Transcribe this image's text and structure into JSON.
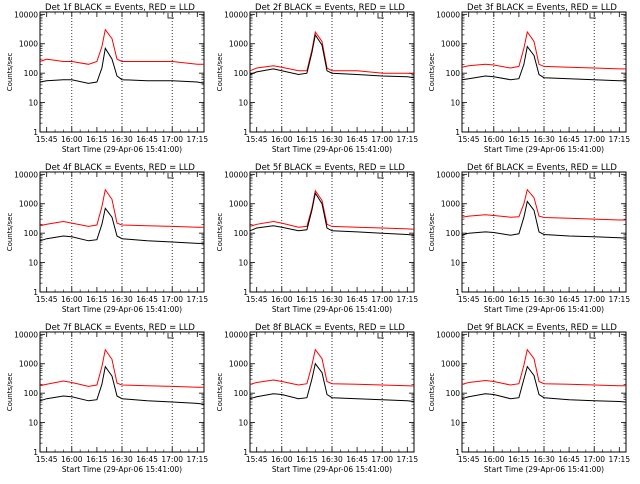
{
  "chart_data": [
    {
      "type": "line",
      "title": "Det 1f BLACK = Events, RED = LLD",
      "xlabel": "Start Time (29-Apr-06 15:41:00)",
      "ylabel": "Counts/sec",
      "x_ticks": [
        "15:45",
        "16:00",
        "16:15",
        "16:30",
        "16:45",
        "17:00",
        "17:15"
      ],
      "y_ticks": [
        "1",
        "10",
        "100",
        "1000",
        "10000"
      ],
      "y_scale": "log",
      "ylim": [
        1,
        12000
      ],
      "series": [
        {
          "name": "LLD",
          "color": "#ff0000",
          "x": [
            "15:41",
            "15:45",
            "15:55",
            "16:00",
            "16:10",
            "16:15",
            "16:18",
            "16:20",
            "16:24",
            "16:27",
            "16:30",
            "16:45",
            "17:00",
            "17:15",
            "17:19"
          ],
          "values": [
            250,
            300,
            250,
            250,
            200,
            250,
            800,
            3000,
            1500,
            300,
            250,
            250,
            250,
            200,
            200
          ]
        },
        {
          "name": "Events",
          "color": "#000000",
          "x": [
            "15:41",
            "15:45",
            "15:55",
            "16:00",
            "16:10",
            "16:15",
            "16:18",
            "16:20",
            "16:24",
            "16:27",
            "16:30",
            "16:45",
            "17:00",
            "17:15",
            "17:19"
          ],
          "values": [
            50,
            55,
            60,
            60,
            45,
            50,
            150,
            700,
            300,
            80,
            60,
            55,
            55,
            50,
            45
          ]
        }
      ],
      "annotations": {
        "dotted_lines": [
          "16:00",
          "16:30",
          "17:00"
        ]
      }
    },
    {
      "type": "line",
      "title": "Det 2f BLACK = Events, RED = LLD",
      "xlabel": "Start Time (29-Apr-06 15:41:00)",
      "ylabel": "Counts/sec",
      "x_ticks": [
        "15:45",
        "16:00",
        "16:15",
        "16:30",
        "16:45",
        "17:00",
        "17:15"
      ],
      "y_ticks": [
        "1",
        "10",
        "100",
        "1000",
        "10000"
      ],
      "y_scale": "log",
      "ylim": [
        1,
        12000
      ],
      "series": [
        {
          "name": "LLD",
          "color": "#ff0000",
          "x": [
            "15:41",
            "15:45",
            "15:55",
            "16:00",
            "16:10",
            "16:15",
            "16:18",
            "16:20",
            "16:24",
            "16:27",
            "16:30",
            "16:45",
            "17:00",
            "17:15",
            "17:19"
          ],
          "values": [
            120,
            150,
            180,
            160,
            120,
            120,
            600,
            2500,
            1200,
            150,
            120,
            120,
            100,
            100,
            95
          ]
        },
        {
          "name": "Events",
          "color": "#000000",
          "x": [
            "15:41",
            "15:45",
            "15:55",
            "16:00",
            "16:10",
            "16:15",
            "16:18",
            "16:20",
            "16:24",
            "16:27",
            "16:30",
            "16:45",
            "17:00",
            "17:15",
            "17:19"
          ],
          "values": [
            90,
            110,
            140,
            120,
            90,
            100,
            500,
            2000,
            900,
            120,
            100,
            90,
            80,
            75,
            70
          ]
        }
      ],
      "annotations": {
        "dotted_lines": [
          "16:00",
          "16:30",
          "17:00"
        ]
      }
    },
    {
      "type": "line",
      "title": "Det 3f BLACK = Events, RED = LLD",
      "xlabel": "Start Time (29-Apr-06 15:41:00)",
      "ylabel": "Counts/sec",
      "x_ticks": [
        "15:45",
        "16:00",
        "16:15",
        "16:30",
        "16:45",
        "17:00",
        "17:15"
      ],
      "y_ticks": [
        "1",
        "10",
        "100",
        "1000",
        "10000"
      ],
      "y_scale": "log",
      "ylim": [
        1,
        12000
      ],
      "series": [
        {
          "name": "LLD",
          "color": "#ff0000",
          "x": [
            "15:41",
            "15:45",
            "15:55",
            "16:00",
            "16:10",
            "16:15",
            "16:18",
            "16:20",
            "16:24",
            "16:27",
            "16:30",
            "16:45",
            "17:00",
            "17:15",
            "17:19"
          ],
          "values": [
            160,
            180,
            200,
            190,
            150,
            170,
            700,
            2500,
            1200,
            200,
            170,
            160,
            150,
            140,
            140
          ]
        },
        {
          "name": "Events",
          "color": "#000000",
          "x": [
            "15:41",
            "15:45",
            "15:55",
            "16:00",
            "16:10",
            "16:15",
            "16:18",
            "16:20",
            "16:24",
            "16:27",
            "16:30",
            "16:45",
            "17:00",
            "17:15",
            "17:19"
          ],
          "values": [
            60,
            65,
            80,
            75,
            60,
            65,
            200,
            800,
            400,
            90,
            70,
            65,
            60,
            55,
            55
          ]
        }
      ],
      "annotations": {
        "dotted_lines": [
          "16:00",
          "16:30",
          "17:00"
        ]
      }
    },
    {
      "type": "line",
      "title": "Det 4f BLACK = Events, RED = LLD",
      "xlabel": "Start Time (29-Apr-06 15:41:00)",
      "ylabel": "Counts/sec",
      "x_ticks": [
        "15:45",
        "16:00",
        "16:15",
        "16:30",
        "16:45",
        "17:00",
        "17:15"
      ],
      "y_ticks": [
        "1",
        "10",
        "100",
        "1000",
        "10000"
      ],
      "y_scale": "log",
      "ylim": [
        1,
        12000
      ],
      "series": [
        {
          "name": "LLD",
          "color": "#ff0000",
          "x": [
            "15:41",
            "15:45",
            "15:55",
            "16:00",
            "16:10",
            "16:15",
            "16:18",
            "16:20",
            "16:24",
            "16:27",
            "16:30",
            "16:45",
            "17:00",
            "17:15",
            "17:19"
          ],
          "values": [
            180,
            200,
            250,
            220,
            170,
            190,
            800,
            3000,
            1400,
            220,
            190,
            180,
            170,
            160,
            160
          ]
        },
        {
          "name": "Events",
          "color": "#000000",
          "x": [
            "15:41",
            "15:45",
            "15:55",
            "16:00",
            "16:10",
            "16:15",
            "16:18",
            "16:20",
            "16:24",
            "16:27",
            "16:30",
            "16:45",
            "17:00",
            "17:15",
            "17:19"
          ],
          "values": [
            55,
            65,
            80,
            75,
            55,
            60,
            200,
            700,
            350,
            80,
            65,
            55,
            50,
            45,
            45
          ]
        }
      ],
      "annotations": {
        "dotted_lines": [
          "16:00",
          "16:30",
          "17:00"
        ]
      }
    },
    {
      "type": "line",
      "title": "Det 5f BLACK = Events, RED = LLD",
      "xlabel": "Start Time (29-Apr-06 15:41:00)",
      "ylabel": "Counts/sec",
      "x_ticks": [
        "15:45",
        "16:00",
        "16:15",
        "16:30",
        "16:45",
        "17:00",
        "17:15"
      ],
      "y_ticks": [
        "1",
        "10",
        "100",
        "1000",
        "10000"
      ],
      "y_scale": "log",
      "ylim": [
        1,
        12000
      ],
      "series": [
        {
          "name": "LLD",
          "color": "#ff0000",
          "x": [
            "15:41",
            "15:45",
            "15:55",
            "16:00",
            "16:10",
            "16:15",
            "16:18",
            "16:20",
            "16:24",
            "16:27",
            "16:30",
            "16:45",
            "17:00",
            "17:15",
            "17:19"
          ],
          "values": [
            170,
            200,
            250,
            220,
            160,
            170,
            700,
            2800,
            1300,
            200,
            170,
            160,
            150,
            140,
            135
          ]
        },
        {
          "name": "Events",
          "color": "#000000",
          "x": [
            "15:41",
            "15:45",
            "15:55",
            "16:00",
            "16:10",
            "16:15",
            "16:18",
            "16:20",
            "16:24",
            "16:27",
            "16:30",
            "16:45",
            "17:00",
            "17:15",
            "17:19"
          ],
          "values": [
            120,
            150,
            180,
            160,
            120,
            130,
            600,
            2300,
            1000,
            150,
            120,
            110,
            100,
            90,
            85
          ]
        }
      ],
      "annotations": {
        "dotted_lines": [
          "16:00",
          "16:30",
          "17:00"
        ]
      }
    },
    {
      "type": "line",
      "title": "Det 6f BLACK = Events, RED = LLD",
      "xlabel": "Start Time (29-Apr-06 15:41:00)",
      "ylabel": "Counts/sec",
      "x_ticks": [
        "15:45",
        "16:00",
        "16:15",
        "16:30",
        "16:45",
        "17:00",
        "17:15"
      ],
      "y_ticks": [
        "1",
        "10",
        "100",
        "1000",
        "10000"
      ],
      "y_scale": "log",
      "ylim": [
        1,
        12000
      ],
      "series": [
        {
          "name": "LLD",
          "color": "#ff0000",
          "x": [
            "15:41",
            "15:45",
            "15:55",
            "16:00",
            "16:10",
            "16:15",
            "16:18",
            "16:20",
            "16:24",
            "16:27",
            "16:30",
            "16:45",
            "17:00",
            "17:15",
            "17:19"
          ],
          "values": [
            350,
            380,
            420,
            400,
            350,
            360,
            1000,
            3000,
            1600,
            380,
            340,
            320,
            300,
            280,
            280
          ]
        },
        {
          "name": "Events",
          "color": "#000000",
          "x": [
            "15:41",
            "15:45",
            "15:55",
            "16:00",
            "16:10",
            "16:15",
            "16:18",
            "16:20",
            "16:24",
            "16:27",
            "16:30",
            "16:45",
            "17:00",
            "17:15",
            "17:19"
          ],
          "values": [
            85,
            100,
            110,
            105,
            85,
            95,
            350,
            1200,
            600,
            110,
            90,
            80,
            75,
            70,
            68
          ]
        }
      ],
      "annotations": {
        "dotted_lines": [
          "16:00",
          "16:30",
          "17:00"
        ]
      }
    },
    {
      "type": "line",
      "title": "Det 7f BLACK = Events, RED = LLD",
      "xlabel": "Start Time (29-Apr-06 15:41:00)",
      "ylabel": "Counts/sec",
      "x_ticks": [
        "15:45",
        "16:00",
        "16:15",
        "16:30",
        "16:45",
        "17:00",
        "17:15"
      ],
      "y_ticks": [
        "1",
        "10",
        "100",
        "1000",
        "10000"
      ],
      "y_scale": "log",
      "ylim": [
        1,
        12000
      ],
      "series": [
        {
          "name": "LLD",
          "color": "#ff0000",
          "x": [
            "15:41",
            "15:45",
            "15:55",
            "16:00",
            "16:10",
            "16:15",
            "16:18",
            "16:20",
            "16:24",
            "16:27",
            "16:30",
            "16:45",
            "17:00",
            "17:15",
            "17:19"
          ],
          "values": [
            180,
            200,
            260,
            230,
            170,
            190,
            800,
            3000,
            1400,
            220,
            190,
            180,
            170,
            160,
            160
          ]
        },
        {
          "name": "Events",
          "color": "#000000",
          "x": [
            "15:41",
            "15:45",
            "15:55",
            "16:00",
            "16:10",
            "16:15",
            "16:18",
            "16:20",
            "16:24",
            "16:27",
            "16:30",
            "16:45",
            "17:00",
            "17:15",
            "17:19"
          ],
          "values": [
            55,
            65,
            80,
            75,
            55,
            60,
            200,
            800,
            380,
            80,
            65,
            55,
            50,
            45,
            42
          ]
        }
      ],
      "annotations": {
        "dotted_lines": [
          "16:00",
          "16:30",
          "17:00"
        ]
      }
    },
    {
      "type": "line",
      "title": "Det 8f BLACK = Events, RED = LLD",
      "xlabel": "Start Time (29-Apr-06 15:41:00)",
      "ylabel": "Counts/sec",
      "x_ticks": [
        "15:45",
        "16:00",
        "16:15",
        "16:30",
        "16:45",
        "17:00",
        "17:15"
      ],
      "y_ticks": [
        "1",
        "10",
        "100",
        "1000",
        "10000"
      ],
      "y_scale": "log",
      "ylim": [
        1,
        12000
      ],
      "series": [
        {
          "name": "LLD",
          "color": "#ff0000",
          "x": [
            "15:41",
            "15:45",
            "15:55",
            "16:00",
            "16:10",
            "16:15",
            "16:18",
            "16:20",
            "16:24",
            "16:27",
            "16:30",
            "16:45",
            "17:00",
            "17:15",
            "17:19"
          ],
          "values": [
            200,
            230,
            280,
            250,
            190,
            210,
            900,
            3000,
            1500,
            250,
            210,
            200,
            190,
            180,
            175
          ]
        },
        {
          "name": "Events",
          "color": "#000000",
          "x": [
            "15:41",
            "15:45",
            "15:55",
            "16:00",
            "16:10",
            "16:15",
            "16:18",
            "16:20",
            "16:24",
            "16:27",
            "16:30",
            "16:45",
            "17:00",
            "17:15",
            "17:19"
          ],
          "values": [
            65,
            75,
            95,
            90,
            65,
            70,
            300,
            1000,
            500,
            90,
            70,
            65,
            60,
            55,
            52
          ]
        }
      ],
      "annotations": {
        "dotted_lines": [
          "16:00",
          "16:30",
          "17:00"
        ]
      }
    },
    {
      "type": "line",
      "title": "Det 9f BLACK = Events, RED = LLD",
      "xlabel": "Start Time (29-Apr-06 15:41:00)",
      "ylabel": "Counts/sec",
      "x_ticks": [
        "15:45",
        "16:00",
        "16:15",
        "16:30",
        "16:45",
        "17:00",
        "17:15"
      ],
      "y_ticks": [
        "1",
        "10",
        "100",
        "1000",
        "10000"
      ],
      "y_scale": "log",
      "ylim": [
        1,
        12000
      ],
      "series": [
        {
          "name": "LLD",
          "color": "#ff0000",
          "x": [
            "15:41",
            "15:45",
            "15:55",
            "16:00",
            "16:10",
            "16:15",
            "16:18",
            "16:20",
            "16:24",
            "16:27",
            "16:30",
            "16:45",
            "17:00",
            "17:15",
            "17:19"
          ],
          "values": [
            200,
            230,
            270,
            250,
            190,
            210,
            900,
            3000,
            1500,
            250,
            210,
            200,
            190,
            180,
            180
          ]
        },
        {
          "name": "Events",
          "color": "#000000",
          "x": [
            "15:41",
            "15:45",
            "15:55",
            "16:00",
            "16:10",
            "16:15",
            "16:18",
            "16:20",
            "16:24",
            "16:27",
            "16:30",
            "16:45",
            "17:00",
            "17:15",
            "17:19"
          ],
          "values": [
            65,
            75,
            95,
            90,
            65,
            70,
            300,
            800,
            400,
            90,
            70,
            60,
            55,
            52,
            50
          ]
        }
      ],
      "annotations": {
        "dotted_lines": [
          "16:00",
          "16:30",
          "17:00"
        ]
      }
    }
  ]
}
